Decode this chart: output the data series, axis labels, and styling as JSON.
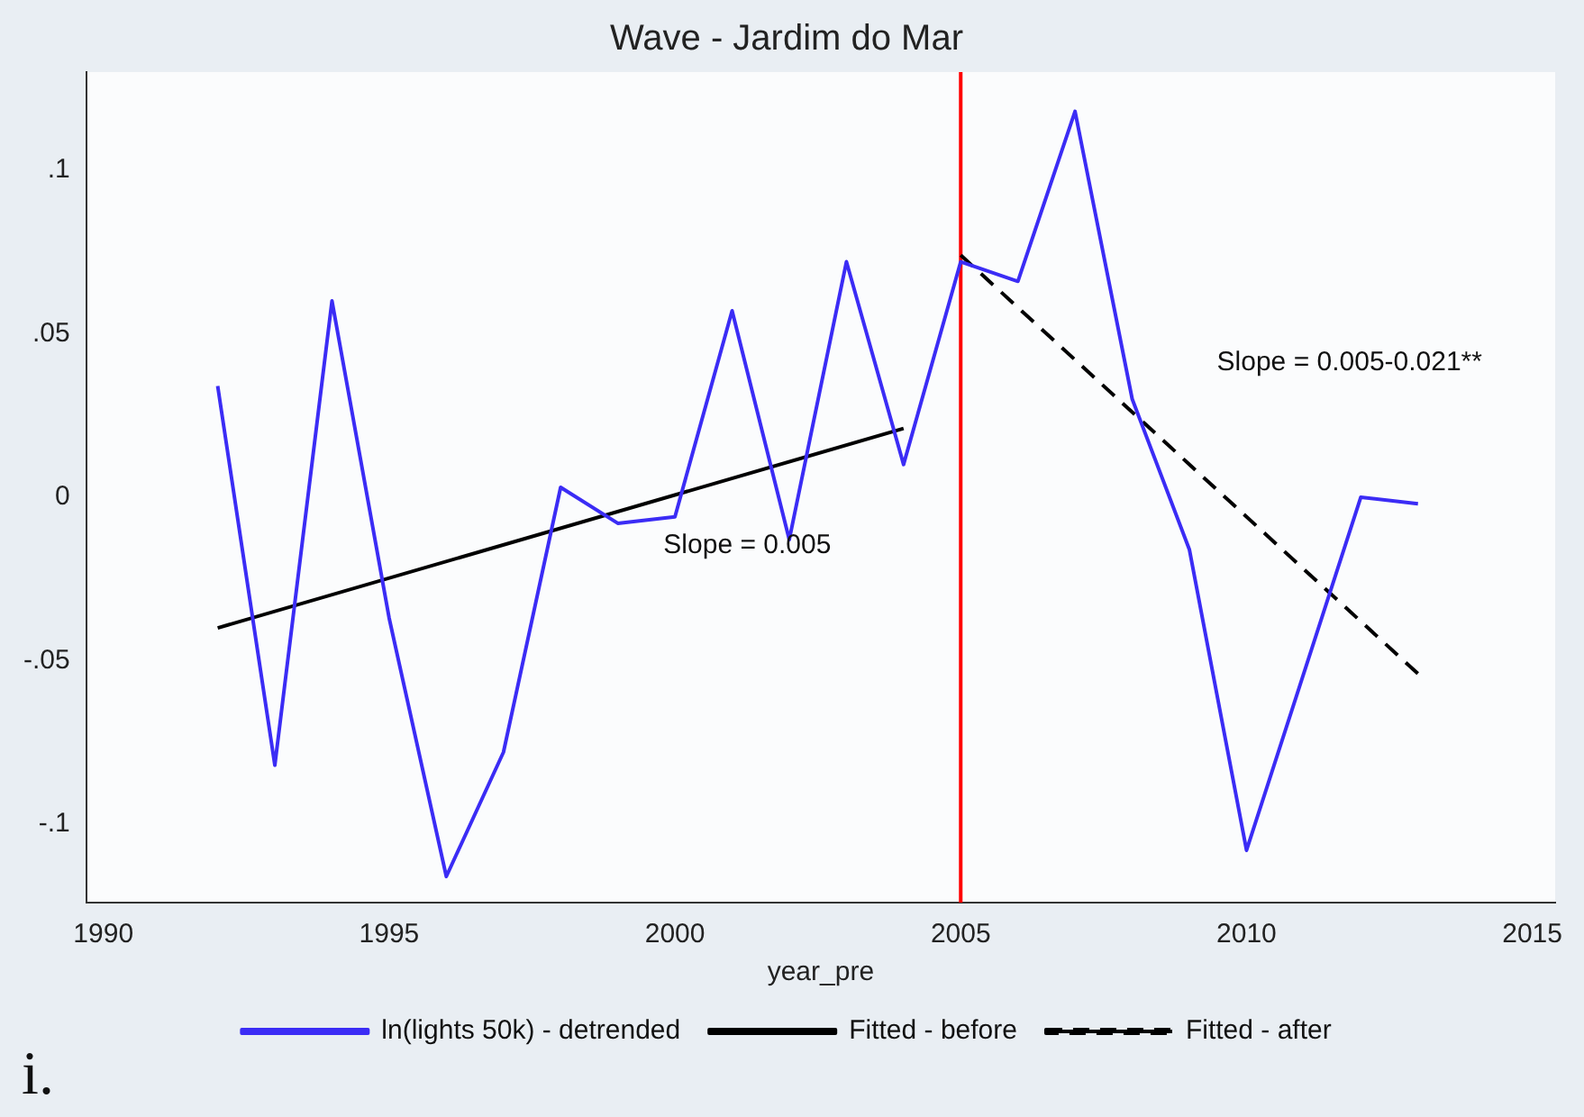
{
  "chart_data": {
    "type": "line",
    "title": "Wave - Jardim do Mar",
    "xlabel": "year_pre",
    "xlim": [
      1989.7,
      2015.4
    ],
    "xticks": [
      1990,
      1995,
      2000,
      2005,
      2010,
      2015
    ],
    "ylim": [
      -0.124,
      0.13
    ],
    "yticks": [
      {
        "value": 0.1,
        "label": ".1"
      },
      {
        "value": 0.05,
        "label": ".05"
      },
      {
        "value": 0,
        "label": "0"
      },
      {
        "value": -0.05,
        "label": "-.05"
      },
      {
        "value": -0.1,
        "label": "-.1"
      }
    ],
    "grid": false,
    "legend": "bottom",
    "marker": "none",
    "series": [
      {
        "name": "ln(lights 50k) - detrended",
        "color": "#3b2cf5",
        "line_style": "solid",
        "x": [
          1992,
          1993,
          1994,
          1995,
          1996,
          1997,
          1998,
          1999,
          2000,
          2001,
          2002,
          2003,
          2004,
          2005,
          2006,
          2007,
          2008,
          2009,
          2010,
          2011,
          2012,
          2013
        ],
        "values": [
          0.034,
          -0.082,
          0.06,
          -0.037,
          -0.116,
          -0.078,
          0.003,
          -0.008,
          -0.006,
          0.057,
          -0.013,
          0.072,
          0.01,
          0.072,
          0.066,
          0.118,
          0.03,
          -0.016,
          -0.108,
          -0.054,
          0.0,
          -0.002
        ]
      },
      {
        "name": "Fitted - before",
        "color": "#000000",
        "line_style": "solid",
        "x": [
          1992,
          2004
        ],
        "values": [
          -0.04,
          0.021
        ]
      },
      {
        "name": "Fitted - after",
        "color": "#000000",
        "line_style": "dashed",
        "x": [
          2005,
          2013
        ],
        "values": [
          0.074,
          -0.054
        ]
      }
    ],
    "ref_lines": [
      {
        "axis": "x",
        "value": 2005,
        "color": "#ff0000"
      }
    ],
    "annotations": [
      "Slope = 0.005",
      "Slope = 0.005-0.021**",
      "i."
    ]
  }
}
